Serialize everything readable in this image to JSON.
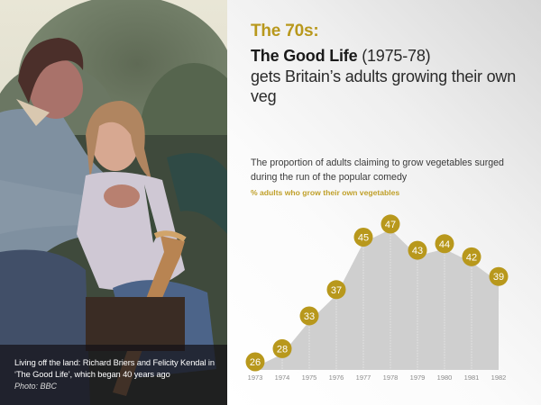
{
  "photo": {
    "caption": "Living off the land: Richard Briers and Felicity Kendal in ‘The Good Life’, which began 40 years ago",
    "credit": "Photo: BBC"
  },
  "header": {
    "kicker": "The 70s:",
    "show_title": "The Good Life",
    "years": "(1975-78)",
    "headline_rest": "gets Britain’s adults growing their own veg"
  },
  "intro": "The proportion of adults claiming to grow vegetables surged during the run of the popular comedy",
  "colors": {
    "accent": "#b8981c",
    "marker": "#b8981c",
    "area": "#cfcfcf",
    "text": "#1a1a1a"
  },
  "chart_data": {
    "type": "area",
    "title": "The proportion of adults claiming to grow vegetables surged during the run of the popular comedy",
    "subtitle": "% adults who grow their own vegetables",
    "xlabel": "",
    "ylabel": "% adults who grow their own vegetables",
    "categories": [
      "1973",
      "1974",
      "1975",
      "1976",
      "1977",
      "1978",
      "1979",
      "1980",
      "1981",
      "1982"
    ],
    "series": [
      {
        "name": "% adults who grow their own vegetables",
        "values": [
          26,
          28,
          33,
          37,
          45,
          47,
          43,
          44,
          42,
          39
        ]
      }
    ],
    "data_labels": true,
    "grid": "dotted vertical lines at each year",
    "legend": "none",
    "ylim": [
      15,
      50
    ]
  }
}
